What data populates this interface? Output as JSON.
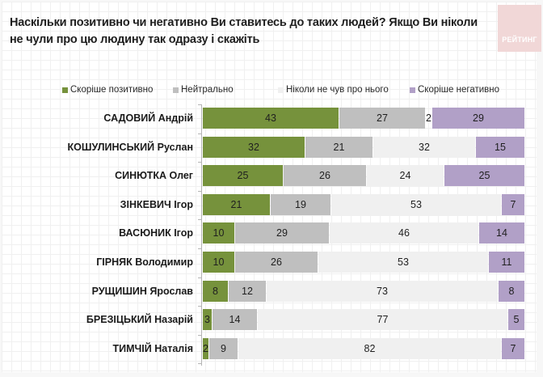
{
  "logo": {
    "text": "РЕЙТИНГ"
  },
  "chart_data": {
    "type": "bar",
    "orientation": "horizontal",
    "stacked": true,
    "title": "Наскільки позитивно чи негативно Ви ставитесь до таких людей? Якщо Ви ніколи не чули про цю людину так одразу і скажіть",
    "legend_position": "top",
    "categories": [
      "САДОВИЙ Андрій",
      "КОШУЛИНСЬКИЙ Руслан",
      "СИНЮТКА Олег",
      "ЗІНКЕВИЧ Ігор",
      "ВАСЮНИК Ігор",
      "ГІРНЯК Володимир",
      "РУЩИШИН Ярослав",
      "БРЕЗІЦЬКИЙ Назарій",
      "ТИМЧІЙ Наталія"
    ],
    "series": [
      {
        "name": "Скоріше позитивно",
        "color": "#76923c",
        "values": [
          43,
          32,
          25,
          21,
          10,
          10,
          8,
          3,
          2
        ]
      },
      {
        "name": "Нейтрально",
        "color": "#bfbfbf",
        "values": [
          27,
          21,
          26,
          19,
          29,
          26,
          12,
          14,
          9
        ]
      },
      {
        "name": "Ніколи не чув про нього",
        "color": "#f0f0f0",
        "values": [
          2,
          32,
          24,
          53,
          46,
          53,
          73,
          77,
          82
        ]
      },
      {
        "name": "Скоріше негативно",
        "color": "#b1a0c7",
        "values": [
          29,
          15,
          25,
          7,
          14,
          11,
          8,
          5,
          7
        ]
      }
    ],
    "xlim": [
      0,
      100
    ],
    "grid": false
  }
}
